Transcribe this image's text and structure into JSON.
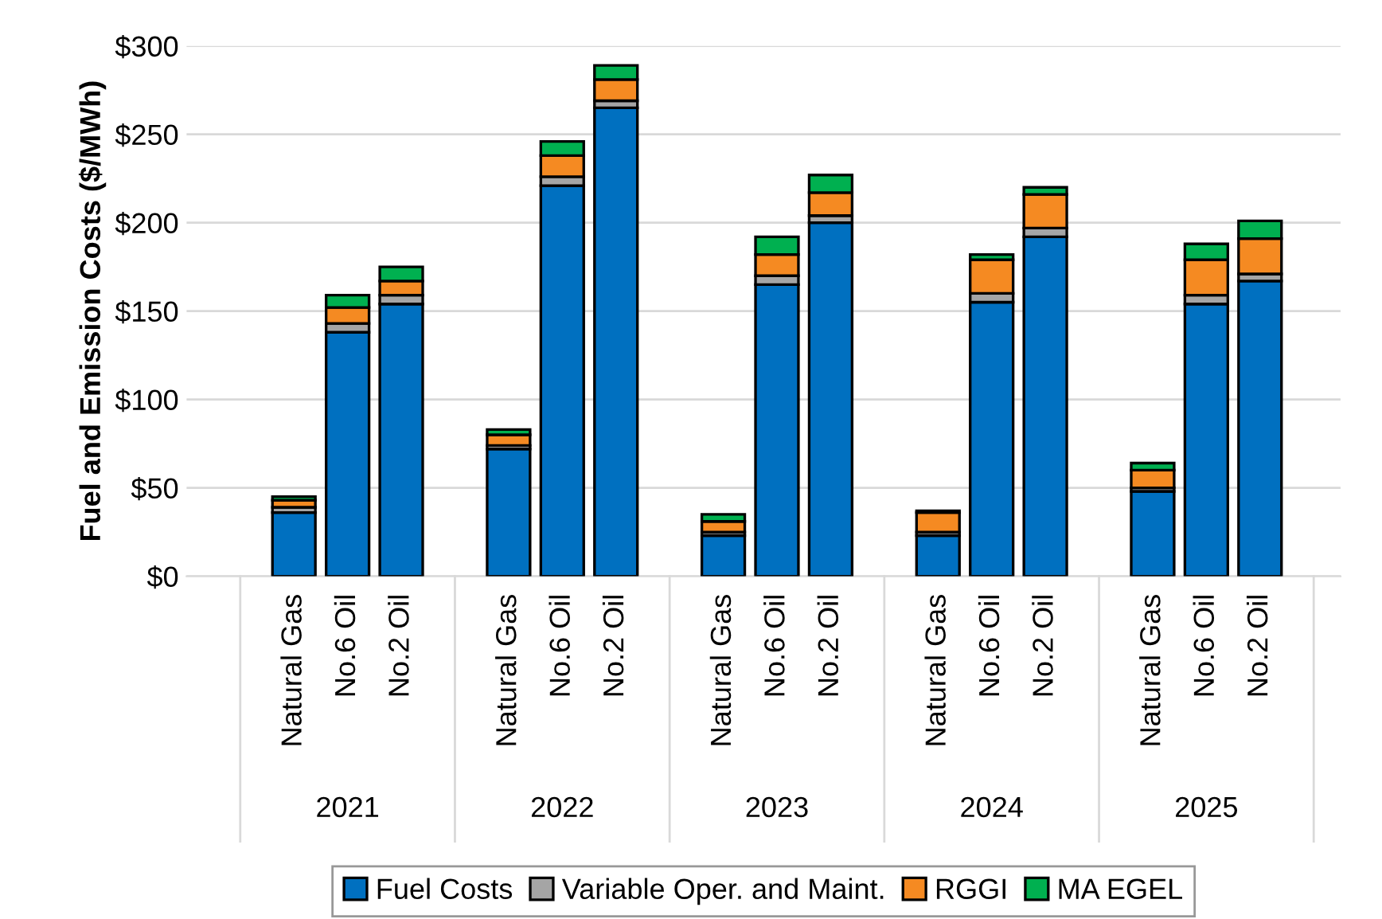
{
  "chart_data": {
    "type": "bar",
    "stacked": true,
    "ylabel": "Fuel and Emission Costs ($/MWh)",
    "categories": [
      "Natural Gas",
      "No.6 Oil",
      "No.2 Oil",
      "Natural Gas",
      "No.6 Oil",
      "No.2 Oil",
      "Natural Gas",
      "No.6 Oil",
      "No.2 Oil",
      "Natural Gas",
      "No.6 Oil",
      "No.2 Oil",
      "Natural Gas",
      "No.6 Oil",
      "No.2 Oil"
    ],
    "annotations": [
      "2021",
      "2022",
      "2023",
      "2024",
      "2025"
    ],
    "series": [
      {
        "name": "Fuel Costs",
        "color": "#0070c0",
        "values": [
          36,
          138,
          154,
          72,
          221,
          265,
          23,
          165,
          200,
          23,
          155,
          192,
          48,
          154,
          167
        ]
      },
      {
        "name": "Variable Oper. and Maint.",
        "color": "#a5a5a5",
        "values": [
          3,
          5,
          5,
          2,
          5,
          4,
          2,
          5,
          4,
          2,
          5,
          5,
          2,
          5,
          4
        ]
      },
      {
        "name": "RGGI",
        "color": "#f58a22",
        "values": [
          4,
          9,
          8,
          6,
          12,
          12,
          6,
          12,
          13,
          11,
          19,
          19,
          10,
          20,
          20
        ]
      },
      {
        "name": "MA EGEL",
        "color": "#00b050",
        "values": [
          2,
          7,
          8,
          3,
          8,
          8,
          4,
          10,
          10,
          1,
          3,
          4,
          4,
          9,
          10
        ]
      }
    ],
    "ylim": [
      0,
      300
    ],
    "yticks": [
      {
        "value": 0,
        "label": "$0"
      },
      {
        "value": 50,
        "label": "$50"
      },
      {
        "value": 100,
        "label": "$100"
      },
      {
        "value": 150,
        "label": "$150"
      },
      {
        "value": 200,
        "label": "$200"
      },
      {
        "value": 250,
        "label": "$250"
      },
      {
        "value": 300,
        "label": "$300"
      }
    ],
    "grid": "y",
    "legend": "bottom"
  }
}
